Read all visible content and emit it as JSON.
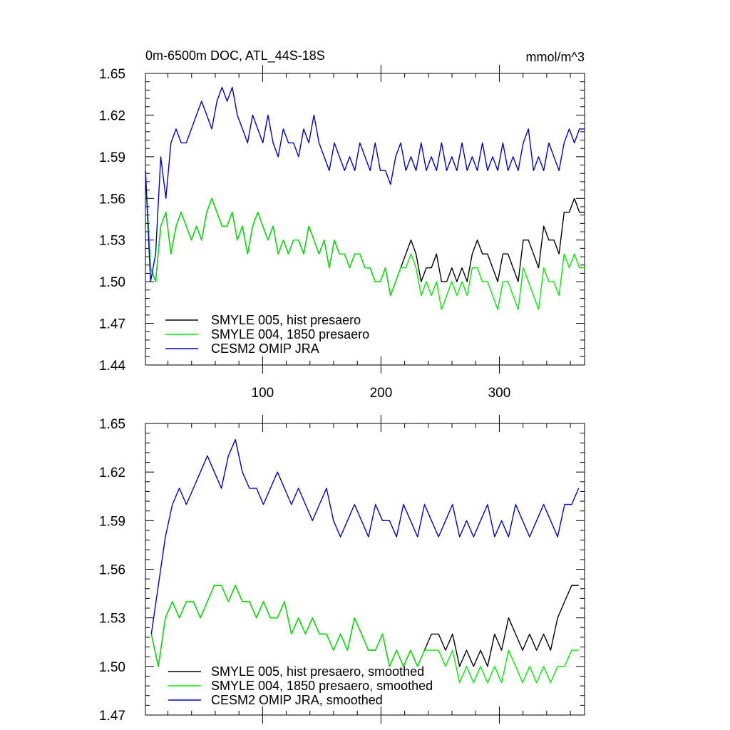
{
  "colors": {
    "hist": "#000000",
    "p1850": "#00ee00",
    "omip": "#0000cc",
    "axis": "#000000"
  },
  "chart_data": [
    {
      "type": "line",
      "title": "0m-6500m DOC, ATL_44S-18S",
      "units": "mmol/m^3",
      "xlim": [
        1,
        372
      ],
      "ylim": [
        1.44,
        1.65
      ],
      "x_ticks": [
        100,
        200,
        300
      ],
      "y_ticks": [
        1.44,
        1.47,
        1.5,
        1.53,
        1.56,
        1.59,
        1.62,
        1.65
      ],
      "y_tick_labels": [
        "1.44",
        "1.47",
        "1.50",
        "1.53",
        "1.56",
        "1.59",
        "1.62",
        "1.65"
      ],
      "legend_position": "bottom-left",
      "series": [
        {
          "key": "hist",
          "name": "SMYLE 005, hist presaero",
          "x_start": 1,
          "x_end": 372,
          "values": [
            1.58,
            1.51,
            1.5,
            1.54,
            1.55,
            1.52,
            1.54,
            1.55,
            1.54,
            1.53,
            1.54,
            1.53,
            1.55,
            1.56,
            1.55,
            1.54,
            1.54,
            1.55,
            1.53,
            1.54,
            1.52,
            1.54,
            1.55,
            1.54,
            1.53,
            1.54,
            1.52,
            1.53,
            1.52,
            1.53,
            1.53,
            1.52,
            1.54,
            1.53,
            1.52,
            1.53,
            1.51,
            1.53,
            1.52,
            1.52,
            1.51,
            1.52,
            1.52,
            1.51,
            1.51,
            1.5,
            1.5,
            1.51,
            1.49,
            1.5,
            1.51,
            1.52,
            1.53,
            1.52,
            1.5,
            1.51,
            1.51,
            1.52,
            1.5,
            1.5,
            1.51,
            1.5,
            1.51,
            1.5,
            1.52,
            1.53,
            1.52,
            1.52,
            1.51,
            1.5,
            1.52,
            1.52,
            1.51,
            1.5,
            1.53,
            1.53,
            1.52,
            1.51,
            1.54,
            1.53,
            1.53,
            1.52,
            1.55,
            1.55,
            1.56,
            1.55,
            1.55
          ]
        },
        {
          "key": "p1850",
          "name": "SMYLE 004, 1850 presaero",
          "x_start": 1,
          "x_end": 372,
          "values": [
            1.58,
            1.51,
            1.5,
            1.54,
            1.55,
            1.52,
            1.54,
            1.55,
            1.54,
            1.53,
            1.54,
            1.53,
            1.55,
            1.56,
            1.55,
            1.54,
            1.54,
            1.55,
            1.53,
            1.54,
            1.52,
            1.54,
            1.55,
            1.54,
            1.53,
            1.54,
            1.52,
            1.53,
            1.52,
            1.53,
            1.53,
            1.52,
            1.54,
            1.53,
            1.52,
            1.53,
            1.51,
            1.53,
            1.52,
            1.52,
            1.51,
            1.52,
            1.52,
            1.51,
            1.51,
            1.5,
            1.5,
            1.51,
            1.49,
            1.5,
            1.51,
            1.51,
            1.52,
            1.51,
            1.49,
            1.5,
            1.49,
            1.5,
            1.48,
            1.49,
            1.5,
            1.49,
            1.5,
            1.49,
            1.51,
            1.51,
            1.5,
            1.5,
            1.49,
            1.48,
            1.5,
            1.5,
            1.49,
            1.48,
            1.51,
            1.5,
            1.49,
            1.48,
            1.51,
            1.5,
            1.5,
            1.49,
            1.52,
            1.51,
            1.52,
            1.51,
            1.51
          ]
        },
        {
          "key": "omip",
          "name": "CESM2 OMIP JRA",
          "x_start": 1,
          "x_end": 372,
          "values": [
            1.58,
            1.5,
            1.52,
            1.59,
            1.56,
            1.6,
            1.61,
            1.6,
            1.6,
            1.61,
            1.62,
            1.63,
            1.62,
            1.61,
            1.63,
            1.64,
            1.63,
            1.64,
            1.62,
            1.61,
            1.6,
            1.62,
            1.61,
            1.6,
            1.62,
            1.6,
            1.59,
            1.61,
            1.6,
            1.6,
            1.59,
            1.61,
            1.6,
            1.62,
            1.6,
            1.59,
            1.58,
            1.6,
            1.59,
            1.58,
            1.59,
            1.58,
            1.6,
            1.59,
            1.58,
            1.6,
            1.58,
            1.58,
            1.57,
            1.59,
            1.6,
            1.58,
            1.59,
            1.58,
            1.6,
            1.58,
            1.59,
            1.58,
            1.6,
            1.58,
            1.59,
            1.58,
            1.6,
            1.58,
            1.59,
            1.58,
            1.6,
            1.58,
            1.59,
            1.58,
            1.6,
            1.58,
            1.59,
            1.58,
            1.6,
            1.61,
            1.58,
            1.59,
            1.58,
            1.6,
            1.59,
            1.58,
            1.6,
            1.61,
            1.6,
            1.61,
            1.61
          ]
        }
      ]
    },
    {
      "type": "line",
      "title": "",
      "units": "",
      "xlim": [
        1,
        372
      ],
      "ylim": [
        1.47,
        1.65
      ],
      "x_ticks": [
        100,
        200,
        300
      ],
      "y_ticks": [
        1.47,
        1.5,
        1.53,
        1.56,
        1.59,
        1.62,
        1.65
      ],
      "y_tick_labels": [
        "1.47",
        "1.50",
        "1.53",
        "1.56",
        "1.59",
        "1.62",
        "1.65"
      ],
      "legend_position": "bottom-left",
      "series": [
        {
          "key": "hist",
          "name": "SMYLE 005, hist presaero, smoothed",
          "x_start": 6,
          "x_end": 367,
          "values": [
            1.52,
            1.5,
            1.53,
            1.54,
            1.53,
            1.54,
            1.54,
            1.53,
            1.54,
            1.55,
            1.55,
            1.54,
            1.55,
            1.54,
            1.54,
            1.53,
            1.54,
            1.53,
            1.53,
            1.54,
            1.52,
            1.53,
            1.52,
            1.53,
            1.52,
            1.52,
            1.51,
            1.52,
            1.51,
            1.53,
            1.52,
            1.51,
            1.51,
            1.52,
            1.5,
            1.51,
            1.5,
            1.51,
            1.5,
            1.51,
            1.52,
            1.52,
            1.51,
            1.52,
            1.5,
            1.51,
            1.5,
            1.51,
            1.5,
            1.52,
            1.51,
            1.53,
            1.52,
            1.51,
            1.52,
            1.51,
            1.52,
            1.51,
            1.53,
            1.54,
            1.55,
            1.55
          ]
        },
        {
          "key": "p1850",
          "name": "SMYLE 004, 1850 presaero, smoothed",
          "x_start": 6,
          "x_end": 367,
          "values": [
            1.52,
            1.5,
            1.53,
            1.54,
            1.53,
            1.54,
            1.54,
            1.53,
            1.54,
            1.55,
            1.55,
            1.54,
            1.55,
            1.54,
            1.54,
            1.53,
            1.54,
            1.53,
            1.53,
            1.54,
            1.52,
            1.53,
            1.52,
            1.53,
            1.52,
            1.52,
            1.51,
            1.52,
            1.51,
            1.53,
            1.52,
            1.51,
            1.51,
            1.52,
            1.5,
            1.51,
            1.5,
            1.51,
            1.5,
            1.51,
            1.51,
            1.51,
            1.5,
            1.51,
            1.49,
            1.5,
            1.49,
            1.5,
            1.49,
            1.5,
            1.49,
            1.51,
            1.5,
            1.49,
            1.5,
            1.49,
            1.5,
            1.49,
            1.5,
            1.5,
            1.51,
            1.51
          ]
        },
        {
          "key": "omip",
          "name": "CESM2 OMIP JRA, smoothed",
          "x_start": 6,
          "x_end": 367,
          "values": [
            1.52,
            1.55,
            1.58,
            1.6,
            1.61,
            1.6,
            1.61,
            1.62,
            1.63,
            1.62,
            1.61,
            1.63,
            1.64,
            1.62,
            1.61,
            1.61,
            1.6,
            1.61,
            1.62,
            1.61,
            1.6,
            1.61,
            1.6,
            1.59,
            1.6,
            1.61,
            1.59,
            1.58,
            1.59,
            1.6,
            1.59,
            1.58,
            1.6,
            1.59,
            1.59,
            1.58,
            1.6,
            1.59,
            1.58,
            1.6,
            1.59,
            1.58,
            1.59,
            1.6,
            1.58,
            1.59,
            1.58,
            1.59,
            1.6,
            1.58,
            1.59,
            1.58,
            1.6,
            1.59,
            1.58,
            1.59,
            1.6,
            1.59,
            1.58,
            1.6,
            1.6,
            1.61
          ]
        }
      ]
    }
  ]
}
